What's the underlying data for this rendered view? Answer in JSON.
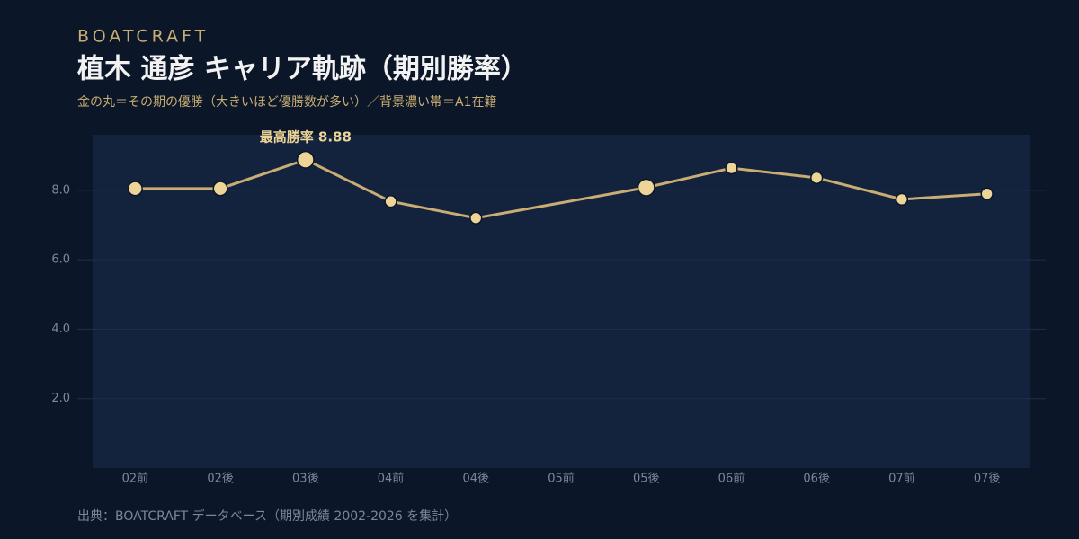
{
  "brand": "BOATCRAFT",
  "chart_data": {
    "type": "line",
    "title": "植木 通彦  キャリア軌跡（期別勝率）",
    "subtitle": "金の丸＝その期の優勝（大きいほど優勝数が多い）／背景濃い帯＝A1在籍",
    "categories": [
      "02前",
      "02後",
      "03後",
      "04前",
      "04後",
      "05前",
      "05後",
      "06前",
      "06後",
      "07前",
      "07後"
    ],
    "series": [
      {
        "color": "#c9ad72",
        "marker_color": "#ecd597",
        "values": [
          8.05,
          8.05,
          8.88,
          7.68,
          7.2,
          7.64,
          8.08,
          8.64,
          8.36,
          7.74,
          7.9
        ],
        "sizes": [
          2,
          2,
          3,
          1,
          1,
          0,
          3,
          1,
          1,
          1,
          1
        ]
      }
    ],
    "a1_band": {
      "from": "02前",
      "to": "07後"
    },
    "ylim": [
      0,
      9.6
    ],
    "yticks": [
      {
        "value": 2,
        "label": "2.0"
      },
      {
        "value": 4,
        "label": "4.0"
      },
      {
        "value": 6,
        "label": "6.0"
      },
      {
        "value": 8,
        "label": "8.0"
      }
    ],
    "grid": true,
    "annotation": {
      "text": "最高勝率 8.88",
      "index": 2
    },
    "source": "出典：BOATCRAFT データベース（期別成績 2002-2026 を集計）"
  }
}
